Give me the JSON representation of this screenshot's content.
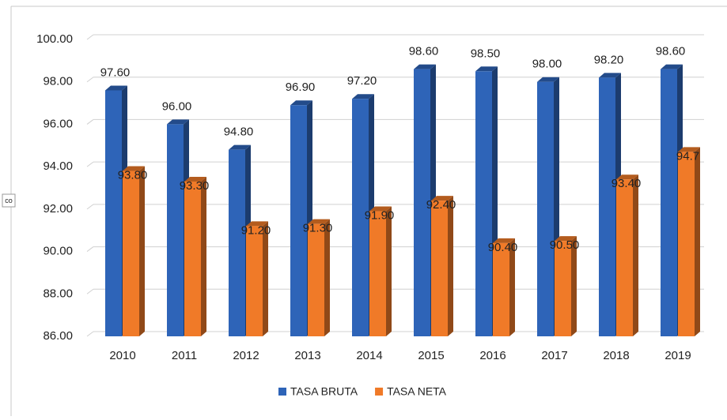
{
  "chart_data": {
    "type": "bar3d",
    "side_label": "co",
    "categories": [
      "2010",
      "2011",
      "2012",
      "2013",
      "2014",
      "2015",
      "2016",
      "2017",
      "2018",
      "2019"
    ],
    "series": [
      {
        "name": "TASA BRUTA",
        "color": "#2e64b8",
        "values": [
          97.6,
          96.0,
          94.8,
          96.9,
          97.2,
          98.6,
          98.5,
          98.0,
          98.2,
          98.6
        ],
        "value_labels": [
          "97.60",
          "96.00",
          "94.80",
          "96.90",
          "97.20",
          "98.60",
          "98.50",
          "98.00",
          "98.20",
          "98.60"
        ]
      },
      {
        "name": "TASA NETA",
        "color": "#f07a28",
        "values": [
          93.8,
          93.3,
          91.2,
          91.3,
          91.9,
          92.4,
          90.4,
          90.5,
          93.4,
          94.7
        ],
        "value_labels": [
          "93.80",
          "93.30",
          "91.20",
          "91.30",
          "91.90",
          "92.40",
          "90.40",
          "90.50",
          "93.40",
          "94.7"
        ]
      }
    ],
    "ylim": [
      86,
      100
    ],
    "yticks": [
      {
        "value": 86,
        "label": "86.00"
      },
      {
        "value": 88,
        "label": "88.00"
      },
      {
        "value": 90,
        "label": "90.00"
      },
      {
        "value": 92,
        "label": "92.00"
      },
      {
        "value": 94,
        "label": "94.00"
      },
      {
        "value": 96,
        "label": "96.00"
      },
      {
        "value": 98,
        "label": "98.00"
      },
      {
        "value": 100,
        "label": "100.00"
      }
    ],
    "grid": true,
    "legend": "bottom"
  }
}
